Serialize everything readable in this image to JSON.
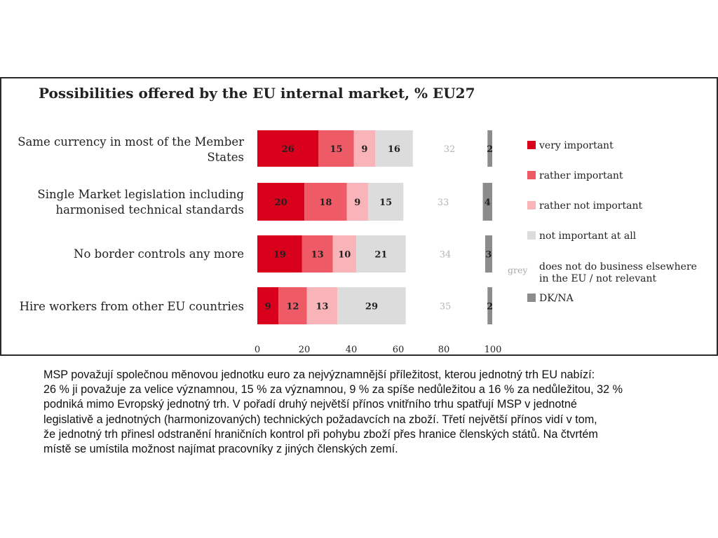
{
  "chart_data": {
    "type": "bar",
    "title": "Possibilities offered by the EU internal market, % EU27",
    "categories": [
      [
        "Same currency in most of the Member",
        "States"
      ],
      [
        "Single Market legislation including",
        "harmonised technical standards"
      ],
      [
        "No border controls any more"
      ],
      [
        "Hire workers from other EU countries"
      ]
    ],
    "series": [
      {
        "name": "very important",
        "color": "#d9001b",
        "values": [
          26,
          20,
          19,
          9
        ]
      },
      {
        "name": "rather important",
        "color": "#ee5a66",
        "values": [
          15,
          18,
          13,
          12
        ]
      },
      {
        "name": "rather not important",
        "color": "#f8b4b8",
        "values": [
          9,
          9,
          10,
          13
        ]
      },
      {
        "name": "not important at all",
        "color": "#dcdcdc",
        "values": [
          16,
          15,
          21,
          29
        ]
      }
    ],
    "grey_series": {
      "name_prefix": "grey",
      "name": [
        "does not do business elsewhere",
        "in the EU / not relevant"
      ],
      "values": [
        32,
        33,
        34,
        35
      ]
    },
    "dkna_series": {
      "name": "DK/NA",
      "color": "#8c8c8c",
      "values": [
        2,
        4,
        3,
        2
      ]
    },
    "xticks": [
      "0",
      "20",
      "40",
      "60",
      "80",
      "100"
    ],
    "xlim": [
      0,
      100
    ],
    "legend_position": "right"
  },
  "caption_lines": [
    "MSP považují společnou měnovou jednotku euro za nejvýznamnější příležitost, kterou jednotný trh EU nabízí:",
    "26 % ji považuje za velice významnou, 15 % za významnou, 9 % za spíše nedůležitou a 16 % za nedůležitou, 32 %",
    "podniká mimo Evropský jednotný trh. V pořadí druhý největší přínos vnitřního trhu spatřují MSP v jednotné",
    "legislativě a jednotných (harmonizovaných) technických požadavcích na zboží. Třetí největší přínos vidí v tom,",
    "že jednotný trh přinesl odstranění hraničních kontrol při pohybu zboží přes hranice členských států. Na čtvrtém",
    "místě se umístila možnost najímat pracovníky z jiných členských zemí."
  ]
}
